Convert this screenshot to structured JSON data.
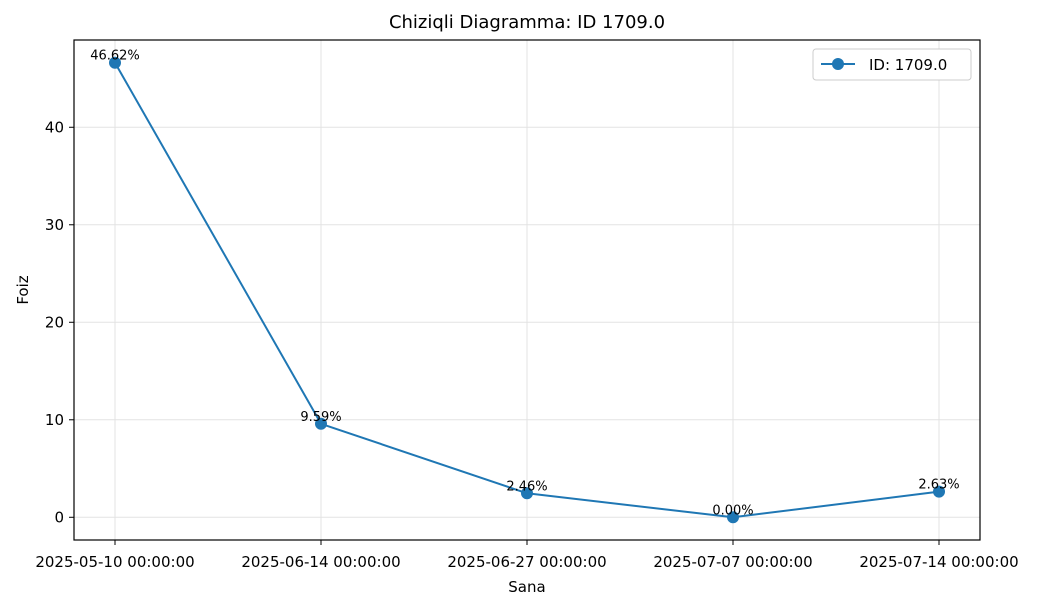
{
  "chart_data": {
    "type": "line",
    "title": "Chiziqli Diagramma: ID 1709.0",
    "xlabel": "Sana",
    "ylabel": "Foiz",
    "categories": [
      "2025-05-10 00:00:00",
      "2025-06-14 00:00:00",
      "2025-06-27 00:00:00",
      "2025-07-07 00:00:00",
      "2025-07-14 00:00:00"
    ],
    "series": [
      {
        "name": "ID: 1709.0",
        "values": [
          46.62,
          9.59,
          2.46,
          0.0,
          2.63
        ],
        "labels": [
          "46.62%",
          "9.59%",
          "2.46%",
          "0.00%",
          "2.63%"
        ],
        "color": "#1f77b4"
      }
    ],
    "yticks": [
      0,
      10,
      20,
      30,
      40
    ],
    "ylim": [
      -2.33,
      48.95
    ],
    "grid": true,
    "legend_position": "top-right"
  }
}
